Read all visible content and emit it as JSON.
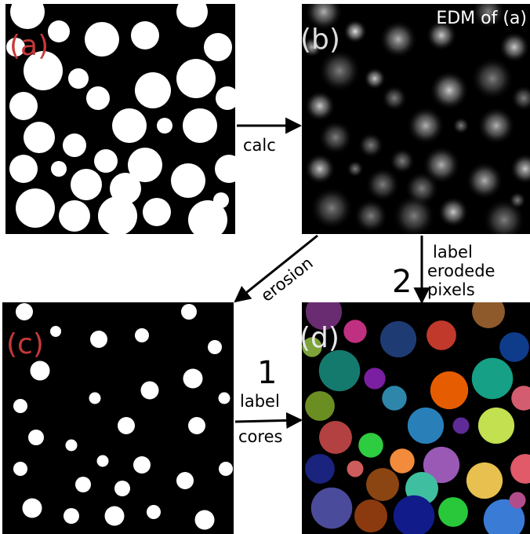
{
  "panels": {
    "a": "(a)",
    "b": "(b)",
    "b_caption": "EDM of (a)",
    "c": "(c)",
    "d": "(d)"
  },
  "arrows": {
    "calc": "calc",
    "erosion": "erosion",
    "step2": {
      "number": "2",
      "lines": [
        "label",
        "erodede",
        "pixels"
      ]
    },
    "step1": {
      "number": "1",
      "lines": [
        "label",
        "cores"
      ]
    }
  }
}
